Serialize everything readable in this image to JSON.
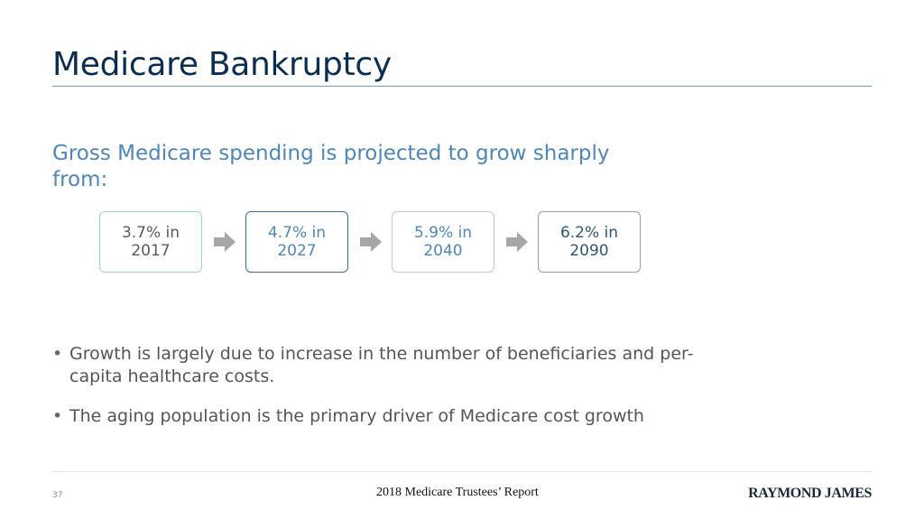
{
  "slide": {
    "title": "Medicare Bankruptcy",
    "subtitle": "Gross Medicare spending is projected to grow sharply from:",
    "process_steps": [
      {
        "label": "3.7% in 2017",
        "border_color": "#9fd0df",
        "text_color": "#595959"
      },
      {
        "label": "4.7% in 2027",
        "border_color": "#3b6d96",
        "text_color": "#4f86b5"
      },
      {
        "label": "5.9% in 2040",
        "border_color": "#c8c8c8",
        "text_color": "#4f86b5"
      },
      {
        "label": "6.2% in 2090",
        "border_color": "#9a9a9a",
        "text_color": "#2f5670"
      }
    ],
    "arrow_icon": "right-arrow-icon",
    "bullets": [
      "Growth is largely due to increase in the number of beneficiaries and per-capita healthcare costs.",
      "The aging population is the primary driver of Medicare cost growth"
    ]
  },
  "footer": {
    "page_number": "37",
    "source": "2018 Medicare Trustees’ Report",
    "logo_text": "RAYMOND JAMES"
  },
  "colors": {
    "title": "#0b2d4f",
    "subtitle": "#4f86b5",
    "arrow": "#a6a6a6"
  }
}
